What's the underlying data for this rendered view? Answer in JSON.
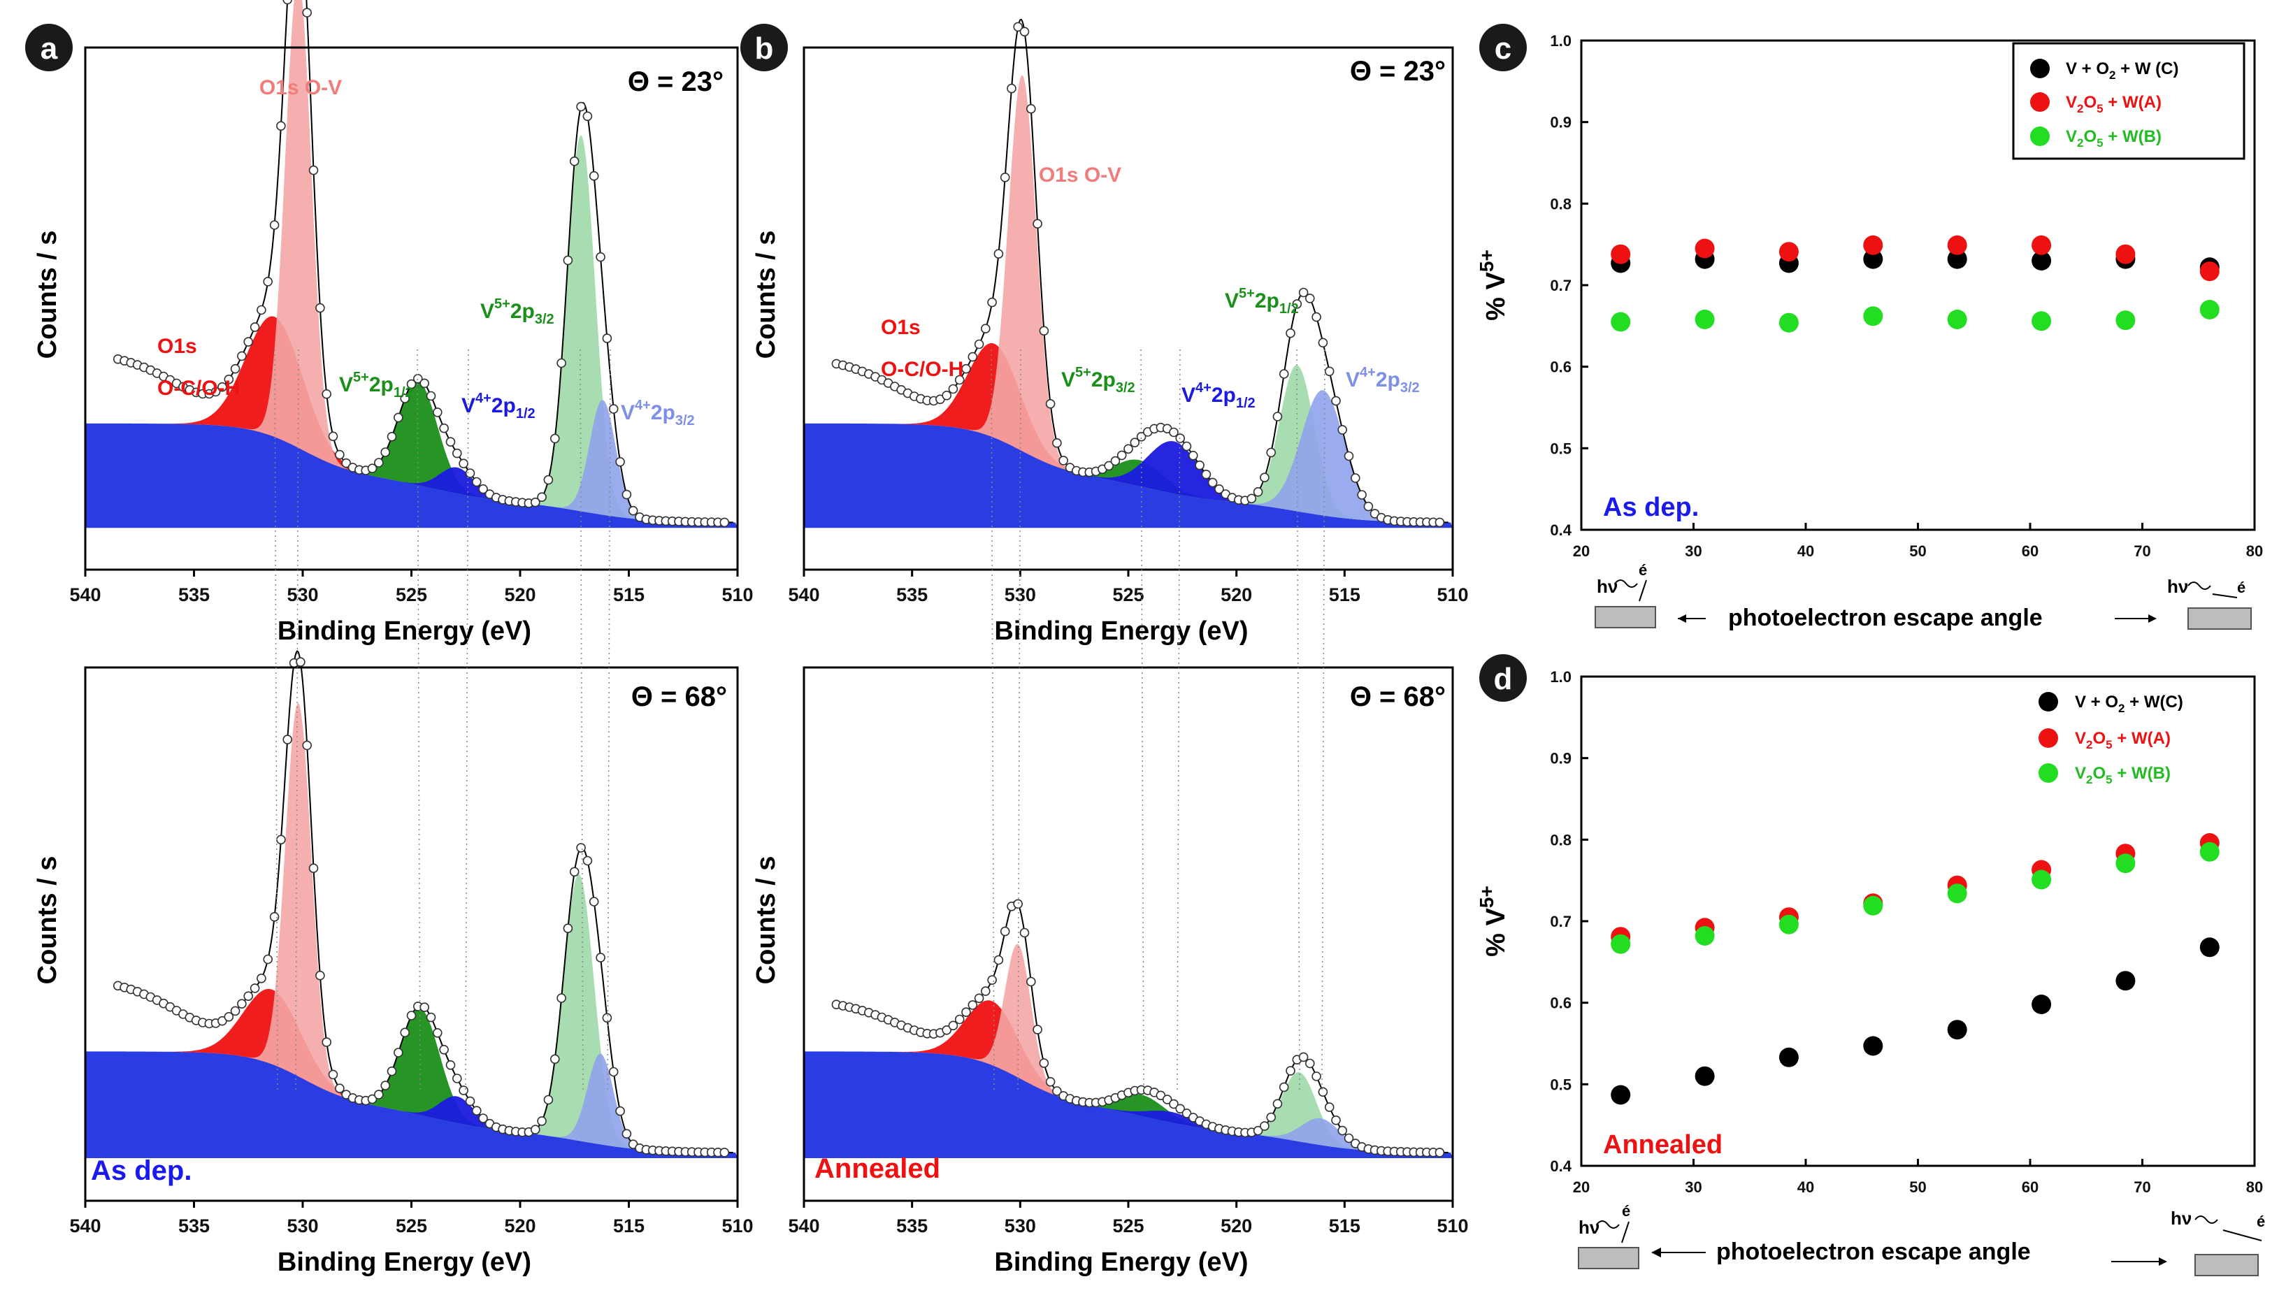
{
  "figure": {
    "panel_labels": [
      "a",
      "b",
      "c",
      "d"
    ],
    "xps_xlabel": "Binding Energy (eV)",
    "xps_ylabel": "Counts / s",
    "theta_top": "Θ = 23°",
    "theta_bottom": "Θ = 68°",
    "cond_asdep": "As dep.",
    "cond_annealed": "Annealed",
    "frac_ylabel_prefix": "% V",
    "frac_ylabel_sup": "5+",
    "frac_xlabel": "photoelectron escape angle",
    "hv": "hν",
    "e_label": "é",
    "ann_o1s_ov": "O1s O-V",
    "ann_o1s": "O1s",
    "ann_ocoh": "O-C/O-H",
    "ann_v5_12_base": "V",
    "ann_v5_12_sup": "5+",
    "ann_v5_12_tail": "2p",
    "ann_v5_12_sub": "1/2",
    "ann_v4_12_base": "V",
    "ann_v4_12_sup": "4+",
    "ann_v4_12_tail": "2p",
    "ann_v4_12_sub": "1/2",
    "ann_v5_32_base": "V",
    "ann_v5_32_sup": "5+",
    "ann_v5_32_tail": "2p",
    "ann_v5_32_sub": "3/2",
    "ann_v4_32_base": "V",
    "ann_v4_32_sup": "4+",
    "ann_v4_32_tail": "2p",
    "ann_v4_32_sub": "3/2",
    "legend": [
      {
        "main": "V + O",
        "sub": "2",
        "rest": " + W (C)",
        "color": "#000000"
      },
      {
        "main": "V",
        "sub": "2",
        "mid": "O",
        "sub2": "5",
        "rest": " + W(A)",
        "color": "#ee1111"
      },
      {
        "main": "V",
        "sub": "2",
        "mid": "O",
        "sub2": "5",
        "rest": " + W(B)",
        "color": "#22dd22"
      }
    ],
    "legend_d_first": "V + O",
    "legend_d_first_sub": "2",
    "legend_d_first_rest": " + W(C)"
  },
  "colors": {
    "o1s_ov": "#f4a6a6",
    "o1s_och": "#ee1111",
    "v5": "#1a8f1a",
    "v5_32": "#9fd9a8",
    "v4": "#1a1adf",
    "v4_32": "#8fa3ec",
    "background": "#1f33e0",
    "asdep": "#1a1aee",
    "annealed": "#ee1111"
  },
  "chart_data": [
    {
      "panel": "a",
      "type": "line",
      "title": "As dep. Θ = 23°",
      "xlabel": "Binding Energy (eV)",
      "ylabel": "Counts / s",
      "xlim": [
        540,
        510
      ],
      "xticks": [
        540,
        535,
        530,
        525,
        520,
        515,
        510
      ],
      "peaks_eV": {
        "O1s O-C/O-H": 531.3,
        "O1s O-V": 530.2,
        "V5+ 2p1/2": 524.7,
        "V4+ 2p1/2": 522.9,
        "V5+ 2p3/2": 517.3,
        "V4+ 2p3/2": 516.3
      }
    },
    {
      "panel": "b",
      "type": "line",
      "title": "Annealed Θ = 23°",
      "xlabel": "Binding Energy (eV)",
      "ylabel": "Counts / s",
      "xlim": [
        540,
        510
      ],
      "xticks": [
        540,
        535,
        530,
        525,
        520,
        515,
        510
      ],
      "peaks_eV": {
        "O1s O-C/O-H": 531.3,
        "O1s O-V": 530.0,
        "V5+ 2p3/2": 524.4,
        "V4+ 2p1/2": 522.8,
        "V5+ 2p3/2 main": 517.3,
        "V4+ 2p3/2": 515.9
      }
    },
    {
      "panel": "a_bottom",
      "type": "line",
      "title": "As dep. Θ = 68°",
      "xlabel": "Binding Energy (eV)",
      "ylabel": "Counts / s",
      "xlim": [
        540,
        510
      ],
      "xticks": [
        540,
        535,
        530,
        525,
        520,
        515,
        510
      ]
    },
    {
      "panel": "b_bottom",
      "type": "line",
      "title": "Annealed Θ = 68°",
      "xlabel": "Binding Energy (eV)",
      "ylabel": "Counts / s",
      "xlim": [
        540,
        510
      ],
      "xticks": [
        540,
        535,
        530,
        525,
        520,
        515,
        510
      ]
    },
    {
      "panel": "c",
      "type": "scatter",
      "title": "As dep.",
      "xlabel": "photoelectron escape angle",
      "ylabel": "% V5+",
      "xlim": [
        20,
        80
      ],
      "ylim": [
        0.4,
        1.0
      ],
      "xticks": [
        20,
        30,
        40,
        50,
        60,
        70,
        80
      ],
      "yticks": [
        0.4,
        0.5,
        0.6,
        0.7,
        0.8,
        0.9,
        1.0
      ],
      "x": [
        23.5,
        31,
        38.5,
        46,
        53.5,
        61,
        68.5,
        76
      ],
      "series": [
        {
          "name": "V + O2 + W (C)",
          "values": [
            0.727,
            0.732,
            0.727,
            0.732,
            0.732,
            0.73,
            0.732,
            0.722
          ]
        },
        {
          "name": "V2O5 + W(A)",
          "values": [
            0.738,
            0.745,
            0.741,
            0.749,
            0.749,
            0.749,
            0.738,
            0.717
          ]
        },
        {
          "name": "V2O5 + W(B)",
          "values": [
            0.655,
            0.658,
            0.654,
            0.662,
            0.658,
            0.656,
            0.657,
            0.67
          ]
        }
      ]
    },
    {
      "panel": "d",
      "type": "scatter",
      "title": "Annealed",
      "xlabel": "photoelectron escape angle",
      "ylabel": "% V5+",
      "xlim": [
        20,
        80
      ],
      "ylim": [
        0.4,
        1.0
      ],
      "xticks": [
        20,
        30,
        40,
        50,
        60,
        70,
        80
      ],
      "yticks": [
        0.4,
        0.5,
        0.6,
        0.7,
        0.8,
        0.9,
        1.0
      ],
      "x": [
        23.5,
        31,
        38.5,
        46,
        53.5,
        61,
        68.5,
        76
      ],
      "series": [
        {
          "name": "V + O2 + W(C)",
          "values": [
            0.487,
            0.51,
            0.533,
            0.547,
            0.567,
            0.598,
            0.627,
            0.668
          ]
        },
        {
          "name": "V2O5 + W(A)",
          "values": [
            0.681,
            0.692,
            0.705,
            0.722,
            0.744,
            0.763,
            0.783,
            0.796
          ]
        },
        {
          "name": "V2O5 + W(B)",
          "values": [
            0.672,
            0.682,
            0.696,
            0.719,
            0.734,
            0.751,
            0.771,
            0.785
          ]
        }
      ]
    }
  ]
}
